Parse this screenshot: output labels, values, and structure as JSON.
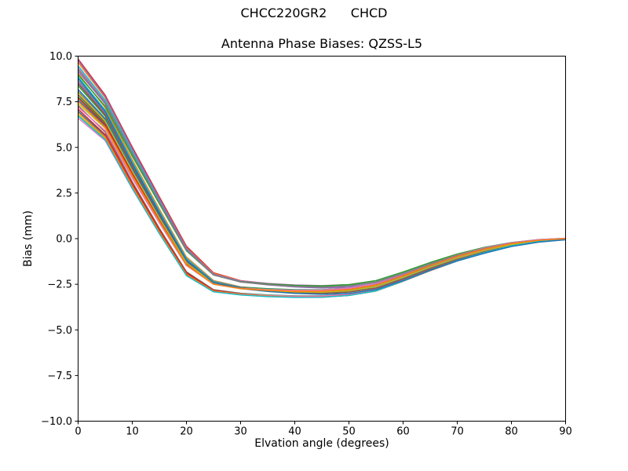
{
  "figure": {
    "suptitle": "CHCC220GR2      CHCD",
    "background_color": "#ffffff",
    "text_color": "#000000"
  },
  "chart_data": {
    "type": "line",
    "title": "Antenna Phase Biases: QZSS-L5",
    "xlabel": "Elvation angle (degrees)",
    "ylabel": "Bias (mm)",
    "xlim": [
      0,
      90
    ],
    "ylim": [
      -10.0,
      10.0
    ],
    "xticks": [
      0,
      10,
      20,
      30,
      40,
      50,
      60,
      70,
      80,
      90
    ],
    "xtick_labels": [
      "0",
      "10",
      "20",
      "30",
      "40",
      "50",
      "60",
      "70",
      "80",
      "90"
    ],
    "yticks": [
      -10.0,
      -7.5,
      -5.0,
      -2.5,
      0.0,
      2.5,
      5.0,
      7.5,
      10.0
    ],
    "ytick_labels": [
      "−10.0",
      "−7.5",
      "−5.0",
      "−2.5",
      "0.0",
      "2.5",
      "5.0",
      "7.5",
      "10.0"
    ],
    "grid": false,
    "legend": "none",
    "axis_color": "#000000",
    "line_width": 1.5,
    "n_lines": 32,
    "line_colors": [
      "#1f77b4",
      "#ff7f0e",
      "#2ca02c",
      "#d62728",
      "#9467bd",
      "#8c564b",
      "#e377c2",
      "#7f7f7f",
      "#bcbd22",
      "#17becf"
    ],
    "x": [
      0,
      5,
      10,
      15,
      20,
      25,
      30,
      35,
      40,
      45,
      50,
      55,
      60,
      65,
      70,
      75,
      80,
      85,
      90
    ],
    "bundle_envelope_top": [
      9.95,
      8.0,
      5.2,
      2.5,
      -0.2,
      -1.7,
      -2.15,
      -2.3,
      -2.4,
      -2.45,
      -2.4,
      -2.2,
      -1.75,
      -1.25,
      -0.8,
      -0.45,
      -0.2,
      -0.05,
      0.02
    ],
    "bundle_envelope_bottom": [
      6.6,
      5.3,
      2.6,
      0.1,
      -2.2,
      -3.05,
      -3.2,
      -3.3,
      -3.35,
      -3.35,
      -3.25,
      -3.0,
      -2.45,
      -1.85,
      -1.3,
      -0.85,
      -0.45,
      -0.2,
      -0.06
    ],
    "note": "Dense bundle of unlabeled overlapping bias curves cycling through the 10 listed colors; individual series values read as envelope of the bundle."
  }
}
